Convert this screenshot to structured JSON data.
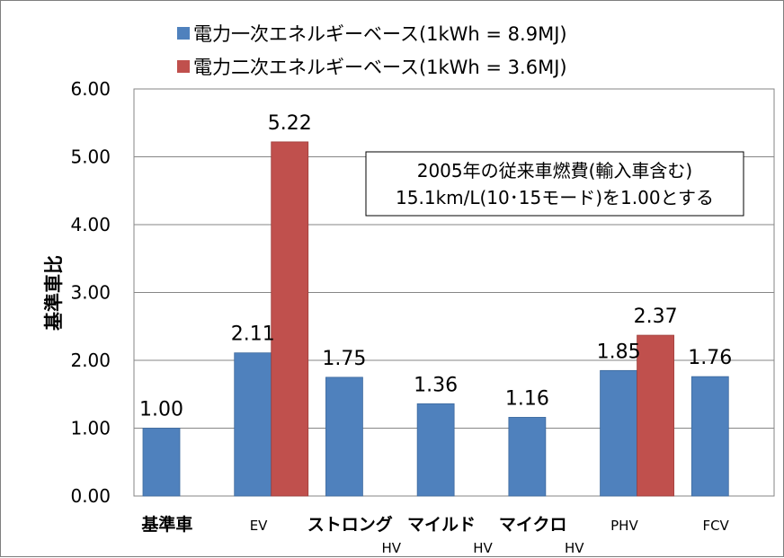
{
  "chart_data": {
    "type": "bar",
    "ylabel": "基準車比",
    "ylim": [
      0,
      6
    ],
    "yticks": [
      "0.00",
      "1.00",
      "2.00",
      "3.00",
      "4.00",
      "5.00",
      "6.00"
    ],
    "grid": true,
    "legend_position": "top",
    "categories": [
      {
        "name": "基準車",
        "sub": "",
        "bold": true
      },
      {
        "name": "EV",
        "sub": "",
        "bold": false
      },
      {
        "name": "ストロング",
        "sub": "HV",
        "bold": true
      },
      {
        "name": "マイルド",
        "sub": "HV",
        "bold": true
      },
      {
        "name": "マイクロ",
        "sub": "HV",
        "bold": true
      },
      {
        "name": "PHV",
        "sub": "",
        "bold": false
      },
      {
        "name": "FCV",
        "sub": "",
        "bold": false
      }
    ],
    "series": [
      {
        "name": "電力一次エネルギーベース(1kWh = 8.9MJ)",
        "color": "#4f81bd",
        "values": [
          1.0,
          2.11,
          1.75,
          1.36,
          1.16,
          1.85,
          1.76
        ],
        "labels": [
          "1.00",
          "2.11",
          "1.75",
          "1.36",
          "1.16",
          "1.85",
          "1.76"
        ]
      },
      {
        "name": "電力二次エネルギーベース(1kWh = 3.6MJ)",
        "color": "#c0504d",
        "values": [
          null,
          5.22,
          null,
          null,
          null,
          2.37,
          null
        ],
        "labels": [
          "",
          "5.22",
          "",
          "",
          "",
          "2.37",
          ""
        ]
      }
    ],
    "annotation": {
      "line1": "2005年の従来車燃費(輸入車含む)",
      "line2": "15.1km/L(10･15モード)を1.00とする"
    }
  }
}
